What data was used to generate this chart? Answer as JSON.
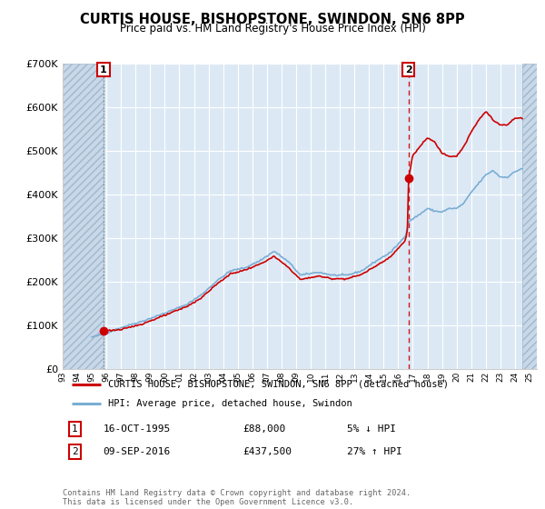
{
  "title": "CURTIS HOUSE, BISHOPSTONE, SWINDON, SN6 8PP",
  "subtitle": "Price paid vs. HM Land Registry's House Price Index (HPI)",
  "ytick_values": [
    0,
    100000,
    200000,
    300000,
    400000,
    500000,
    600000,
    700000
  ],
  "ylim": [
    0,
    700000
  ],
  "xlim_start": 1993.0,
  "xlim_end": 2025.5,
  "transaction1_year": 1995.8,
  "transaction1_value": 88000,
  "transaction2_year": 2016.7,
  "transaction2_value": 437500,
  "legend_label_red": "CURTIS HOUSE, BISHOPSTONE, SWINDON, SN6 8PP (detached house)",
  "legend_label_blue": "HPI: Average price, detached house, Swindon",
  "note1_num": "1",
  "note1_date": "16-OCT-1995",
  "note1_price": "£88,000",
  "note1_hpi": "5% ↓ HPI",
  "note2_num": "2",
  "note2_date": "09-SEP-2016",
  "note2_price": "£437,500",
  "note2_hpi": "27% ↑ HPI",
  "footer": "Contains HM Land Registry data © Crown copyright and database right 2024.\nThis data is licensed under the Open Government Licence v3.0.",
  "hatch_left_start": 1993.0,
  "hatch_left_end": 1995.8,
  "hatch_right_start": 2024.5,
  "hatch_right_end": 2025.5,
  "background_color": "#ffffff",
  "plot_bg_color": "#dce9f5",
  "red_color": "#cc0000",
  "blue_color": "#7aadd4",
  "grid_color": "#ffffff",
  "vline1_color": "#999999",
  "vline2_color": "#cc0000"
}
